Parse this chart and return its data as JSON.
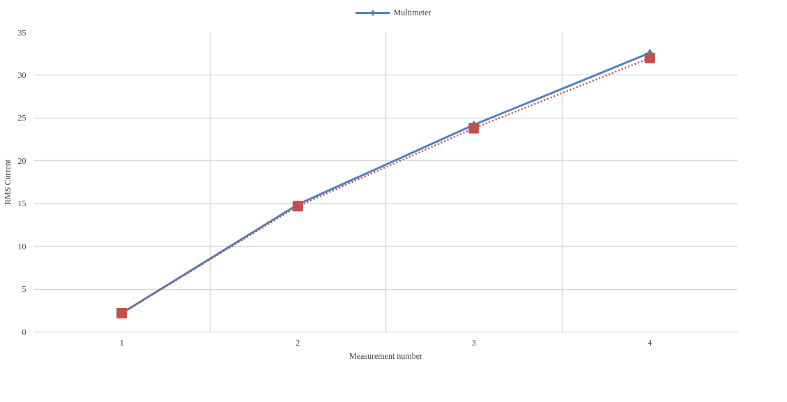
{
  "chart_data": {
    "type": "line",
    "xlabel": "Measurement number",
    "ylabel": "RMS Current",
    "categories": [
      "1",
      "2",
      "3",
      "4"
    ],
    "series": [
      {
        "name": "Multimeter",
        "color": "#4f81bd",
        "values": [
          2.2,
          14.9,
          24.2,
          32.6
        ],
        "marker": "diamond",
        "line_style": "solid"
      },
      {
        "color": "#c0504d",
        "values": [
          2.2,
          14.7,
          23.8,
          32.0
        ],
        "marker": "square",
        "line_style": "dotted"
      }
    ],
    "ylim": [
      0,
      35
    ],
    "yticks": [
      0,
      5,
      10,
      15,
      20,
      25,
      30,
      35
    ],
    "grid": true,
    "legend": "top"
  }
}
